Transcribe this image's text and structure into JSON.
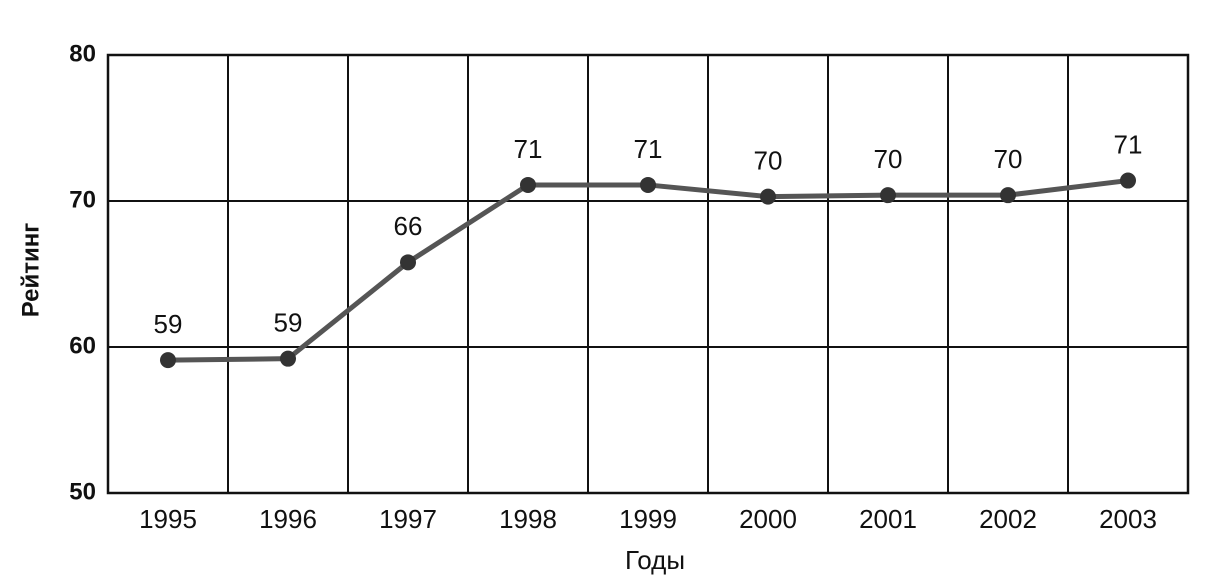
{
  "chart_data": {
    "type": "line",
    "x_label": "Годы",
    "y_label": "Рейтинг",
    "categories": [
      "1995",
      "1996",
      "1997",
      "1998",
      "1999",
      "2000",
      "2001",
      "2002",
      "2003"
    ],
    "values": [
      59.1,
      59.2,
      65.8,
      71.1,
      71.1,
      70.3,
      70.4,
      70.4,
      71.4
    ],
    "value_labels": [
      "59",
      "59",
      "66",
      "71",
      "71",
      "70",
      "70",
      "70",
      "71"
    ],
    "color": "#555555",
    "marker_color": "#333333",
    "ylim": [
      50,
      80
    ],
    "yticks": [
      50,
      60,
      70,
      80
    ],
    "grid": true
  }
}
